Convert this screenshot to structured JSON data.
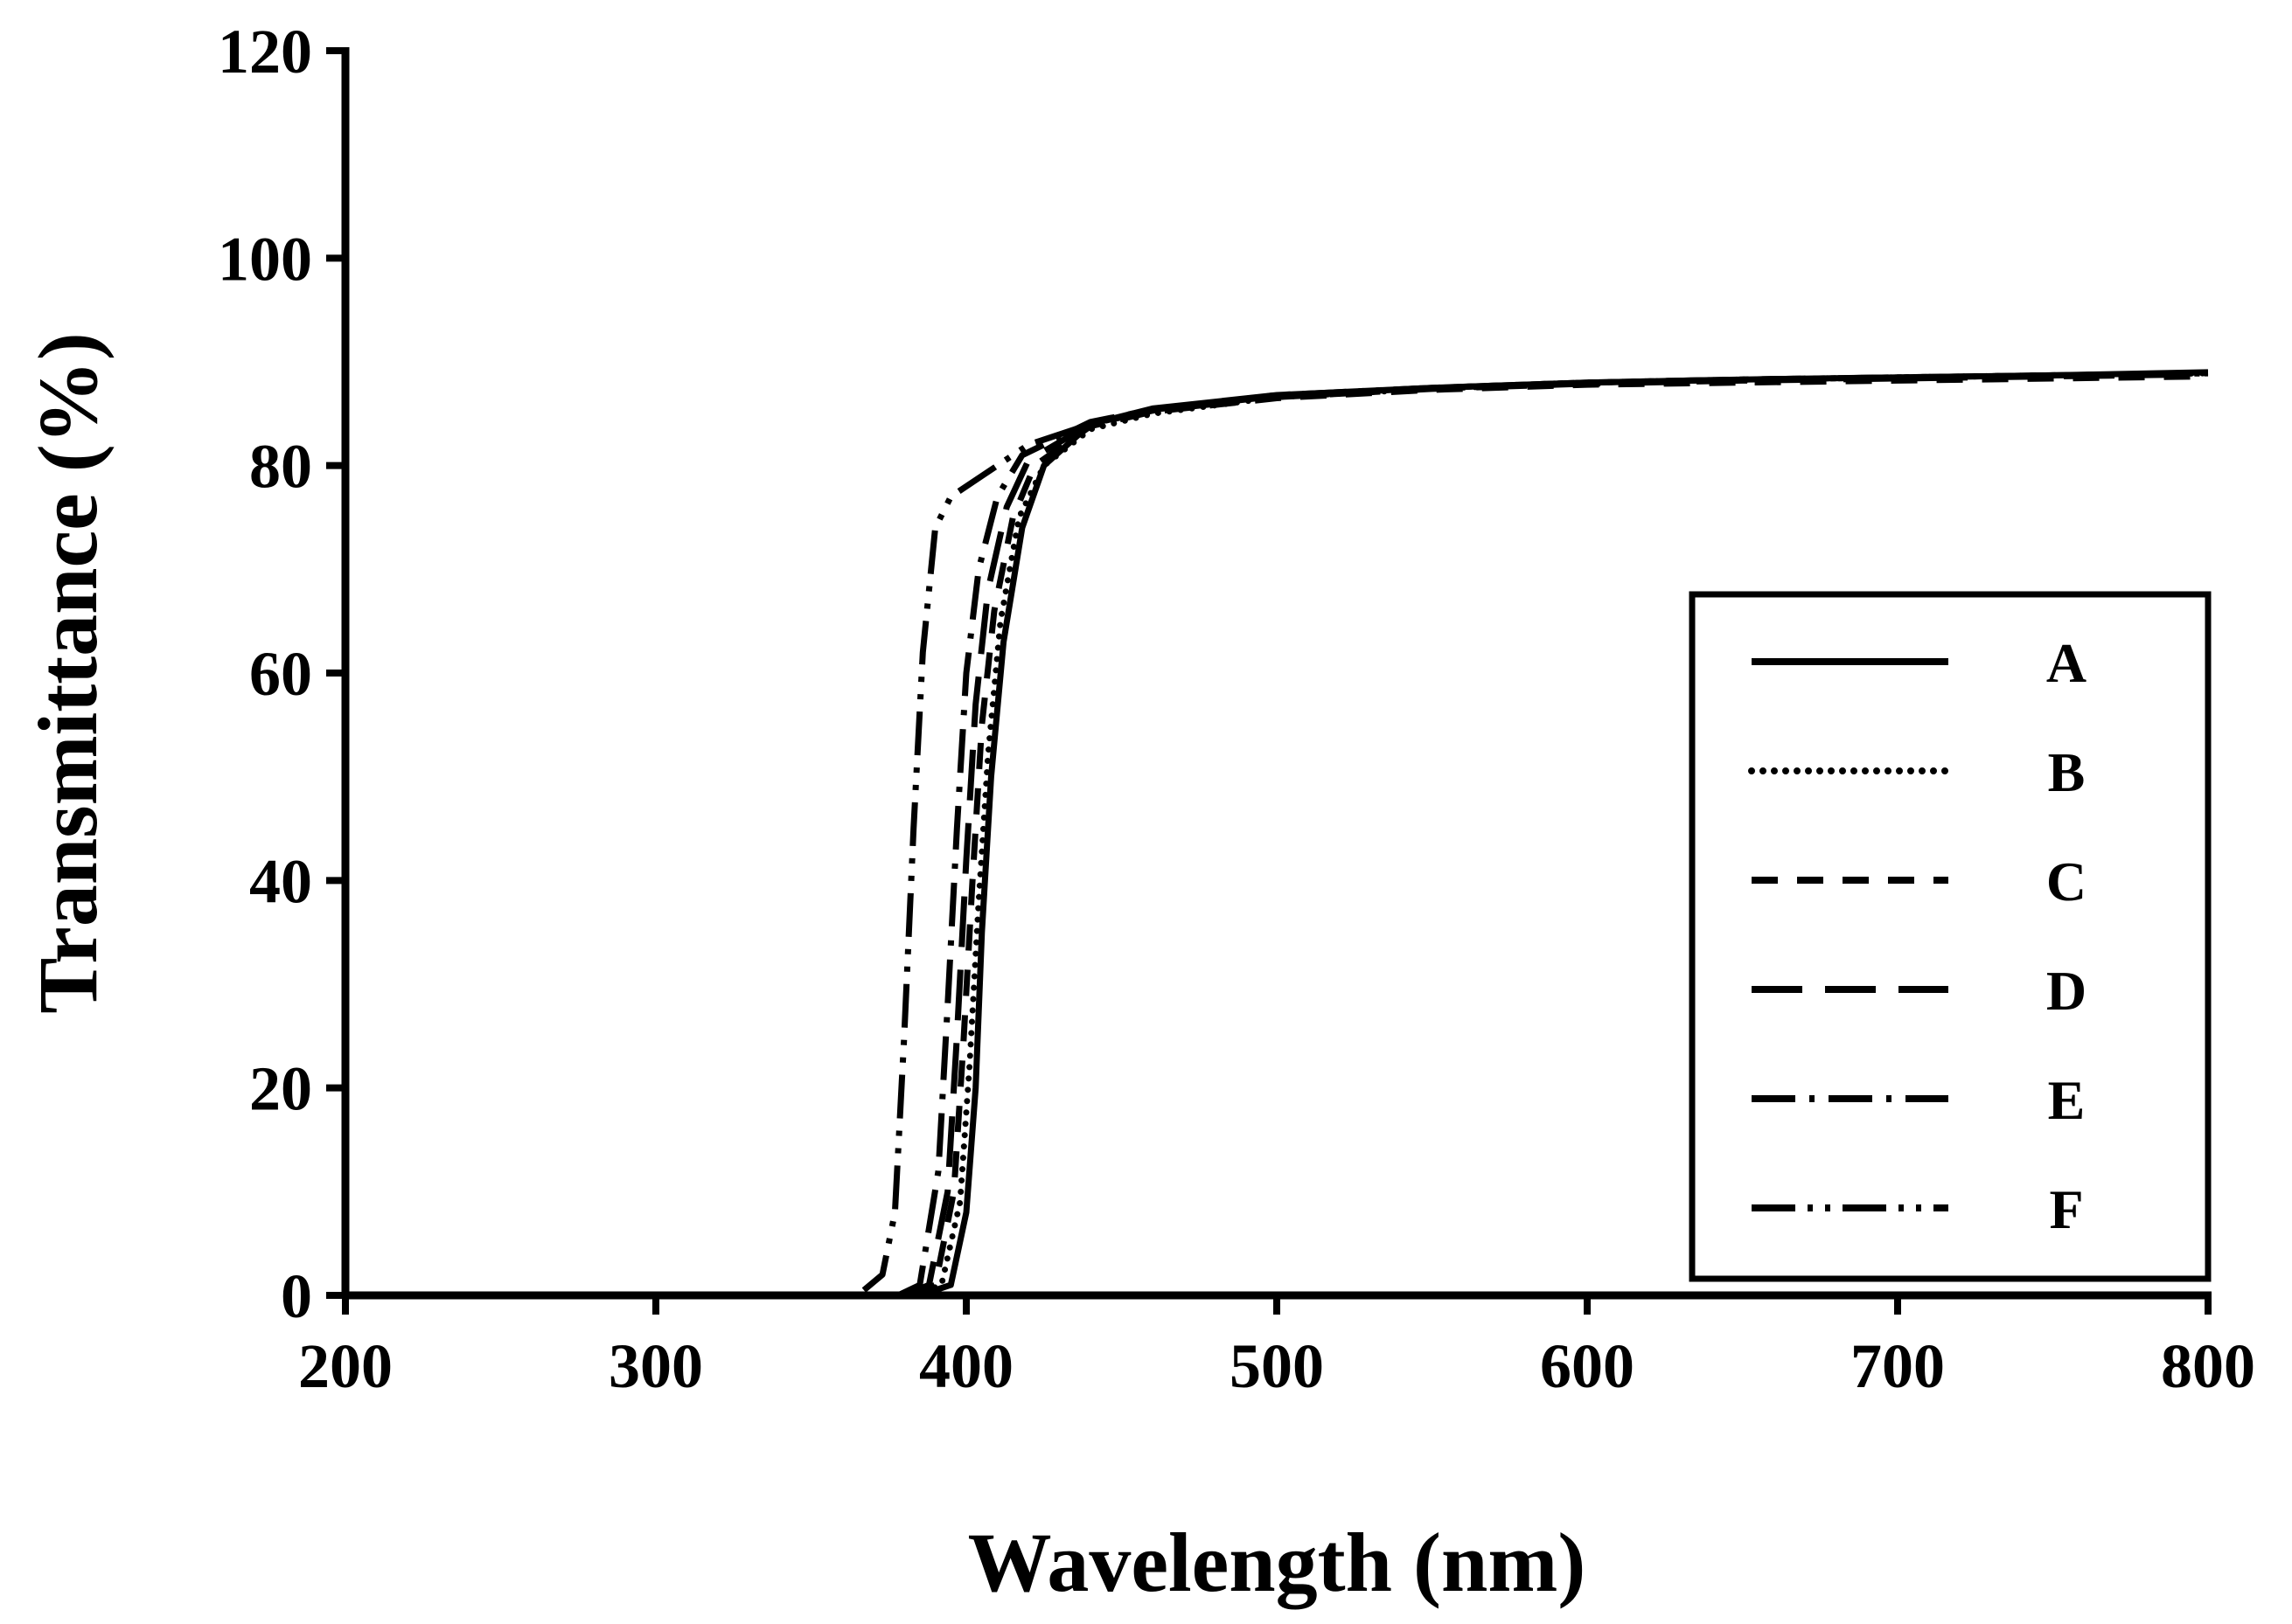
{
  "chart_data": {
    "type": "line",
    "title": "",
    "xlabel": "Wavelength (nm)",
    "ylabel": "Transmittance (%)",
    "xlim": [
      200,
      800
    ],
    "ylim": [
      0,
      120
    ],
    "xticks": [
      200,
      300,
      400,
      500,
      600,
      700,
      800
    ],
    "yticks": [
      0,
      20,
      40,
      60,
      80,
      100,
      120
    ],
    "grid": false,
    "legend_position": "right",
    "series": [
      {
        "name": "A",
        "dash": "solid",
        "x": [
          385,
          395,
          400,
          403,
          405,
          408,
          412,
          418,
          425,
          440,
          460,
          500,
          550,
          600,
          650,
          700,
          750,
          800
        ],
        "y": [
          0,
          1,
          8,
          20,
          35,
          50,
          63,
          74,
          80,
          84,
          85.5,
          86.8,
          87.5,
          88,
          88.3,
          88.5,
          88.7,
          89
        ]
      },
      {
        "name": "B",
        "dash": "dot",
        "x": [
          383,
          392,
          398,
          401,
          404,
          407,
          411,
          417,
          425,
          440,
          460,
          500,
          550,
          600,
          650,
          700,
          750,
          800
        ],
        "y": [
          0,
          1,
          9,
          22,
          38,
          52,
          65,
          75,
          80,
          83.5,
          85,
          86.6,
          87.4,
          88,
          88.3,
          88.5,
          88.7,
          88.9
        ]
      },
      {
        "name": "C",
        "dash": "short-dash",
        "x": [
          382,
          390,
          396,
          399,
          402,
          405,
          409,
          415,
          422,
          440,
          460,
          500,
          550,
          600,
          650,
          700,
          750,
          800
        ],
        "y": [
          0,
          1,
          10,
          24,
          40,
          55,
          66,
          75,
          80,
          83.8,
          85.2,
          86.5,
          87.3,
          87.8,
          88,
          88.2,
          88.4,
          88.6
        ]
      },
      {
        "name": "D",
        "dash": "long-dash",
        "x": [
          380,
          388,
          394,
          397,
          400,
          403,
          407,
          413,
          420,
          440,
          460,
          500,
          550,
          600,
          650,
          700,
          750,
          800
        ],
        "y": [
          0,
          1,
          10,
          25,
          42,
          57,
          68,
          76,
          80.5,
          84,
          85.3,
          86.6,
          87.4,
          87.9,
          88.2,
          88.4,
          88.6,
          88.8
        ]
      },
      {
        "name": "E",
        "dash": "dash-dot",
        "x": [
          378,
          385,
          391,
          394,
          397,
          400,
          404,
          410,
          418,
          440,
          460,
          500,
          550,
          600,
          650,
          700,
          750,
          800
        ],
        "y": [
          0,
          1,
          12,
          28,
          45,
          60,
          70,
          77,
          81,
          84.2,
          85.4,
          86.7,
          87.5,
          88,
          88.3,
          88.5,
          88.7,
          88.9
        ]
      },
      {
        "name": "F",
        "dash": "dash-dot-dot",
        "x": [
          367,
          373,
          377,
          380,
          383,
          386,
          390,
          395,
          405,
          420,
          440,
          460,
          500,
          550,
          600,
          650,
          700,
          750,
          800
        ],
        "y": [
          0.5,
          2,
          8,
          25,
          45,
          62,
          74,
          77,
          79,
          82,
          84,
          85.4,
          86.8,
          87.5,
          88,
          88.3,
          88.5,
          88.7,
          88.9
        ]
      }
    ]
  }
}
